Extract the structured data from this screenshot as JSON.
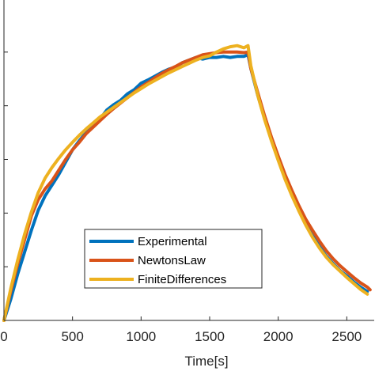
{
  "chart_data": {
    "type": "line",
    "xlabel": "Time[s]",
    "ylabel": "",
    "xlim": [
      0,
      2700
    ],
    "ylim": [
      0,
      6
    ],
    "xticks": [
      0,
      500,
      1000,
      1500,
      2000,
      2500
    ],
    "xtick_labels": [
      "0",
      "500",
      "1000",
      "1500",
      "2000",
      "2500"
    ],
    "yticks": [
      0,
      1,
      2,
      3,
      4,
      5
    ],
    "grid": false,
    "legend_position": "lower-center",
    "series": [
      {
        "name": "Experimental",
        "color": "#0072BD",
        "x": [
          0,
          50,
          100,
          150,
          200,
          250,
          300,
          350,
          400,
          450,
          500,
          550,
          600,
          650,
          700,
          750,
          800,
          850,
          900,
          950,
          1000,
          1050,
          1100,
          1150,
          1200,
          1250,
          1300,
          1350,
          1400,
          1450,
          1500,
          1550,
          1600,
          1650,
          1700,
          1750,
          1780,
          1800,
          1850,
          1900,
          1950,
          2000,
          2050,
          2100,
          2150,
          2200,
          2250,
          2300,
          2350,
          2400,
          2450,
          2500,
          2550,
          2600,
          2650
        ],
        "y": [
          0.0,
          0.4,
          0.86,
          1.27,
          1.68,
          2.05,
          2.32,
          2.52,
          2.72,
          2.95,
          3.18,
          3.35,
          3.5,
          3.62,
          3.75,
          3.92,
          4.02,
          4.1,
          4.22,
          4.3,
          4.42,
          4.48,
          4.55,
          4.62,
          4.68,
          4.72,
          4.8,
          4.85,
          4.9,
          4.87,
          4.9,
          4.9,
          4.92,
          4.9,
          4.92,
          4.92,
          4.95,
          4.7,
          4.2,
          3.77,
          3.37,
          3.0,
          2.66,
          2.35,
          2.07,
          1.81,
          1.58,
          1.38,
          1.2,
          1.06,
          0.93,
          0.83,
          0.72,
          0.62,
          0.54
        ]
      },
      {
        "name": "NewtonsLaw",
        "color": "#D95319",
        "x": [
          0,
          50,
          100,
          150,
          200,
          250,
          300,
          350,
          400,
          450,
          500,
          550,
          600,
          650,
          700,
          750,
          800,
          850,
          900,
          950,
          1000,
          1050,
          1100,
          1150,
          1200,
          1250,
          1300,
          1350,
          1400,
          1450,
          1500,
          1550,
          1600,
          1650,
          1700,
          1750,
          1780,
          1800,
          1850,
          1900,
          1950,
          2000,
          2050,
          2100,
          2150,
          2200,
          2250,
          2300,
          2350,
          2400,
          2450,
          2500,
          2550,
          2600,
          2650,
          2670
        ],
        "y": [
          0.0,
          0.55,
          1.05,
          1.5,
          1.95,
          2.25,
          2.45,
          2.6,
          2.8,
          3.0,
          3.18,
          3.32,
          3.48,
          3.6,
          3.72,
          3.84,
          3.95,
          4.05,
          4.15,
          4.25,
          4.35,
          4.43,
          4.52,
          4.6,
          4.67,
          4.73,
          4.8,
          4.85,
          4.9,
          4.95,
          4.97,
          4.99,
          5.0,
          5.0,
          5.0,
          4.99,
          5.0,
          4.7,
          4.25,
          3.82,
          3.42,
          3.06,
          2.72,
          2.42,
          2.14,
          1.89,
          1.68,
          1.48,
          1.3,
          1.15,
          1.02,
          0.91,
          0.8,
          0.7,
          0.62,
          0.57
        ]
      },
      {
        "name": "FiniteDifferences",
        "color": "#EDB120",
        "x": [
          0,
          50,
          100,
          150,
          200,
          250,
          300,
          350,
          400,
          450,
          500,
          550,
          600,
          650,
          700,
          750,
          800,
          850,
          900,
          950,
          1000,
          1050,
          1100,
          1150,
          1200,
          1250,
          1300,
          1350,
          1400,
          1450,
          1500,
          1550,
          1600,
          1650,
          1700,
          1750,
          1780,
          1800,
          1850,
          1900,
          1950,
          2000,
          2050,
          2100,
          2150,
          2200,
          2250,
          2300,
          2350,
          2400,
          2450,
          2500,
          2550,
          2600,
          2650
        ],
        "y": [
          0.0,
          0.6,
          1.12,
          1.6,
          2.02,
          2.38,
          2.65,
          2.85,
          3.02,
          3.18,
          3.32,
          3.45,
          3.57,
          3.68,
          3.79,
          3.88,
          3.97,
          4.06,
          4.15,
          4.24,
          4.32,
          4.4,
          4.47,
          4.54,
          4.61,
          4.67,
          4.73,
          4.79,
          4.85,
          4.9,
          4.93,
          5.0,
          5.06,
          5.1,
          5.12,
          5.08,
          5.12,
          4.75,
          4.2,
          3.75,
          3.35,
          2.98,
          2.63,
          2.32,
          2.04,
          1.78,
          1.55,
          1.35,
          1.18,
          1.04,
          0.92,
          0.8,
          0.69,
          0.58,
          0.49
        ]
      }
    ]
  }
}
